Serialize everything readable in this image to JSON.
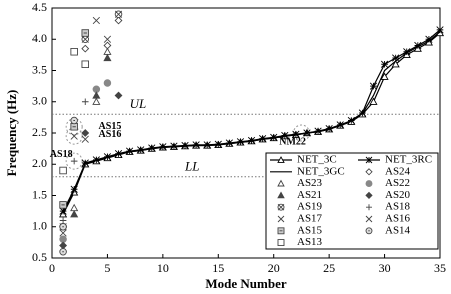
{
  "chart_data": {
    "type": "line",
    "xlabel": "Mode Number",
    "ylabel": "Frequency (Hz)",
    "xlim": [
      0,
      35
    ],
    "xticks": [
      0,
      5,
      10,
      15,
      20,
      25,
      30,
      35
    ],
    "ylim": [
      0.5,
      4.5
    ],
    "yticks": [
      0.5,
      {
        "value": 1,
        "label": "1.0"
      },
      1.5,
      {
        "value": 2,
        "label": "2.0"
      },
      2.5,
      {
        "value": 3,
        "label": "3.0"
      },
      3.5,
      {
        "value": 4,
        "label": "4.0"
      },
      4.5
    ],
    "reference_lines": [
      {
        "label": "UL",
        "value": 2.8
      },
      {
        "label": "LL",
        "value": 1.8
      }
    ],
    "annotations": [
      "AS15",
      "AS16",
      "AS18",
      "NM22"
    ],
    "series": [
      {
        "name": "NET_3C",
        "color": "#000000",
        "line": true,
        "marker": "triangle-open",
        "x": [
          1,
          2,
          3,
          4,
          5,
          6,
          7,
          8,
          9,
          10,
          11,
          12,
          13,
          14,
          15,
          16,
          17,
          18,
          19,
          20,
          21,
          22,
          23,
          24,
          25,
          26,
          27,
          28,
          29,
          30,
          31,
          32,
          33,
          34,
          35
        ],
        "values": [
          1.2,
          1.55,
          2.0,
          2.05,
          2.1,
          2.15,
          2.2,
          2.22,
          2.25,
          2.27,
          2.28,
          2.29,
          2.3,
          2.3,
          2.31,
          2.33,
          2.35,
          2.37,
          2.4,
          2.42,
          2.45,
          2.47,
          2.5,
          2.52,
          2.56,
          2.62,
          2.68,
          2.8,
          3.0,
          3.4,
          3.6,
          3.75,
          3.85,
          3.95,
          4.1
        ]
      },
      {
        "name": "NET_3RC",
        "color": "#000000",
        "line": true,
        "marker": "asterisk",
        "x": [
          1,
          2,
          3,
          4,
          5,
          6,
          7,
          8,
          9,
          10,
          11,
          12,
          13,
          14,
          15,
          16,
          17,
          18,
          19,
          20,
          21,
          22,
          23,
          24,
          25,
          26,
          27,
          28,
          29,
          30,
          31,
          32,
          33,
          34,
          35
        ],
        "values": [
          1.25,
          1.6,
          2.02,
          2.07,
          2.12,
          2.17,
          2.21,
          2.23,
          2.26,
          2.28,
          2.29,
          2.3,
          2.31,
          2.31,
          2.32,
          2.34,
          2.36,
          2.38,
          2.41,
          2.43,
          2.46,
          2.48,
          2.5,
          2.53,
          2.57,
          2.63,
          2.7,
          2.82,
          3.25,
          3.6,
          3.7,
          3.8,
          3.9,
          4.0,
          4.15
        ]
      },
      {
        "name": "NET_3GC",
        "color": "#000000",
        "line": true,
        "marker": "none",
        "x": [
          1,
          2,
          3,
          4,
          5,
          6,
          7,
          8,
          9,
          10,
          11,
          12,
          13,
          14,
          15,
          16,
          17,
          18,
          19,
          20,
          21,
          22,
          23,
          24,
          25,
          26,
          27,
          28,
          29,
          30,
          31,
          32,
          33,
          34,
          35
        ],
        "values": [
          1.22,
          1.58,
          2.01,
          2.06,
          2.11,
          2.16,
          2.2,
          2.22,
          2.25,
          2.27,
          2.28,
          2.29,
          2.3,
          2.3,
          2.31,
          2.33,
          2.35,
          2.37,
          2.4,
          2.42,
          2.45,
          2.47,
          2.5,
          2.52,
          2.56,
          2.62,
          2.69,
          2.81,
          3.1,
          3.5,
          3.65,
          3.78,
          3.88,
          3.97,
          4.12
        ]
      },
      {
        "name": "AS24",
        "color": "#444444",
        "line": false,
        "marker": "diamond-open",
        "x": [
          6,
          5,
          3
        ],
        "values": [
          4.3,
          3.9,
          3.85
        ]
      },
      {
        "name": "AS23",
        "color": "#444444",
        "line": false,
        "marker": "triangle-open",
        "x": [
          5,
          4,
          2
        ],
        "values": [
          3.8,
          3.0,
          1.3
        ]
      },
      {
        "name": "AS22",
        "color": "#888888",
        "line": false,
        "marker": "circle-filled",
        "x": [
          5,
          4,
          1
        ],
        "values": [
          3.3,
          3.2,
          0.8
        ]
      },
      {
        "name": "AS21",
        "color": "#444444",
        "line": false,
        "marker": "triangle-filled",
        "x": [
          5,
          4,
          2
        ],
        "values": [
          3.7,
          3.1,
          1.2
        ]
      },
      {
        "name": "AS20",
        "color": "#444444",
        "line": false,
        "marker": "diamond-filled",
        "x": [
          6,
          3,
          1
        ],
        "values": [
          3.1,
          2.5,
          0.7
        ]
      },
      {
        "name": "AS19",
        "color": "#444444",
        "line": false,
        "marker": "circle-x",
        "x": [
          6,
          3,
          1
        ],
        "values": [
          4.4,
          4.0,
          1.0
        ]
      },
      {
        "name": "AS18",
        "color": "#444444",
        "line": false,
        "marker": "plus",
        "x": [
          3,
          2,
          1
        ],
        "values": [
          3.0,
          2.05,
          1.1
        ]
      },
      {
        "name": "AS17",
        "color": "#444444",
        "line": false,
        "marker": "x",
        "x": [
          4,
          3,
          1
        ],
        "values": [
          4.3,
          2.4,
          0.9
        ]
      },
      {
        "name": "AS16",
        "color": "#444444",
        "line": false,
        "marker": "x",
        "x": [
          5,
          2,
          1
        ],
        "values": [
          4.0,
          2.45,
          0.65
        ]
      },
      {
        "name": "AS15",
        "color": "#444444",
        "line": false,
        "marker": "square-dot",
        "x": [
          3,
          2,
          1
        ],
        "values": [
          4.1,
          2.6,
          1.35
        ]
      },
      {
        "name": "AS14",
        "color": "#444444",
        "line": false,
        "marker": "circle-dot",
        "x": [
          2,
          1,
          1
        ],
        "values": [
          2.7,
          1.0,
          0.6
        ]
      },
      {
        "name": "AS13",
        "color": "#444444",
        "line": false,
        "marker": "square-open",
        "x": [
          2,
          1,
          3
        ],
        "values": [
          3.8,
          1.9,
          3.6
        ]
      }
    ]
  }
}
